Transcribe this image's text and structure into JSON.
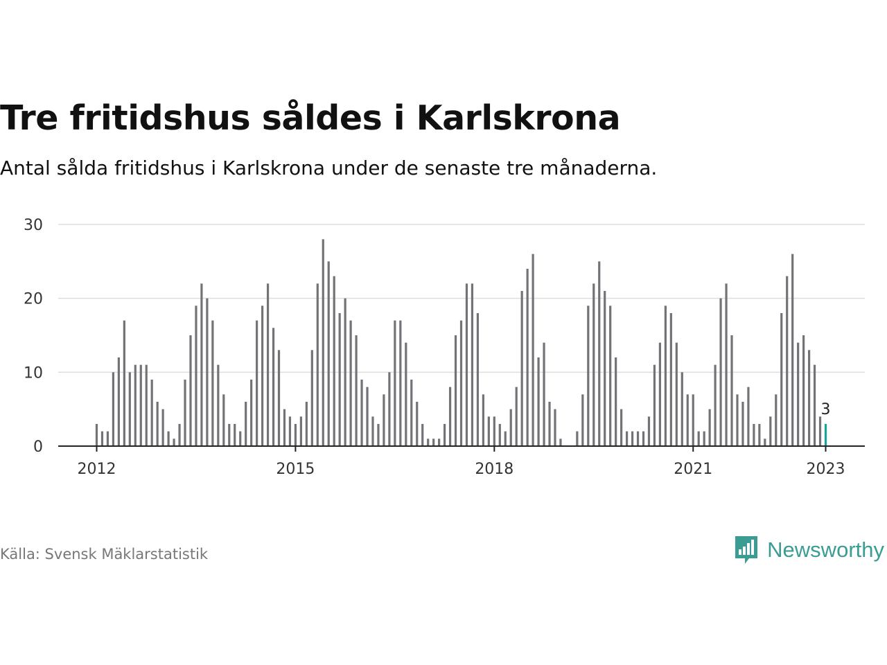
{
  "title": "Tre fritidshus såldes i Karlskrona",
  "subtitle": "Antal sålda fritidshus i Karlskrona under de senaste tre månaderna.",
  "source": "Källa: Svensk Mäklarstatistik",
  "brand": {
    "name": "Newsworthy",
    "icon": "newsworthy-logo-icon"
  },
  "colors": {
    "bar": "#737277",
    "highlight": "#1aa39a",
    "grid": "#dddddd",
    "axis": "#222222"
  },
  "chart_data": {
    "type": "bar",
    "x_start": "2012-01",
    "x_end": "2023-01",
    "x_ticks": [
      "2012",
      "2015",
      "2018",
      "2021",
      "2023"
    ],
    "y_ticks": [
      "0",
      "10",
      "20",
      "30"
    ],
    "ylim": [
      0,
      30
    ],
    "grid": true,
    "highlight_last": true,
    "last_value_label": "3",
    "series": [
      {
        "values": [
          3,
          2,
          2,
          10,
          12,
          17,
          10,
          11,
          11,
          11,
          9,
          6,
          5,
          2,
          1,
          3,
          9,
          15,
          19,
          22,
          20,
          17,
          11,
          7,
          3,
          3,
          2,
          6,
          9,
          17,
          19,
          22,
          16,
          13,
          5,
          4,
          3,
          4,
          6,
          13,
          22,
          28,
          25,
          23,
          18,
          20,
          17,
          15,
          9,
          8,
          4,
          3,
          7,
          10,
          17,
          17,
          14,
          9,
          6,
          3,
          1,
          1,
          1,
          3,
          8,
          15,
          17,
          22,
          22,
          18,
          7,
          4,
          4,
          3,
          2,
          5,
          8,
          21,
          24,
          26,
          12,
          14,
          6,
          5,
          1,
          0,
          0,
          2,
          7,
          19,
          22,
          25,
          21,
          19,
          12,
          5,
          2,
          2,
          2,
          2,
          4,
          11,
          14,
          19,
          18,
          14,
          10,
          7,
          7,
          2,
          2,
          5,
          11,
          20,
          22,
          15,
          7,
          6,
          8,
          3,
          3,
          1,
          4,
          7,
          18,
          23,
          26,
          14,
          15,
          13,
          11,
          4,
          3
        ]
      }
    ]
  }
}
